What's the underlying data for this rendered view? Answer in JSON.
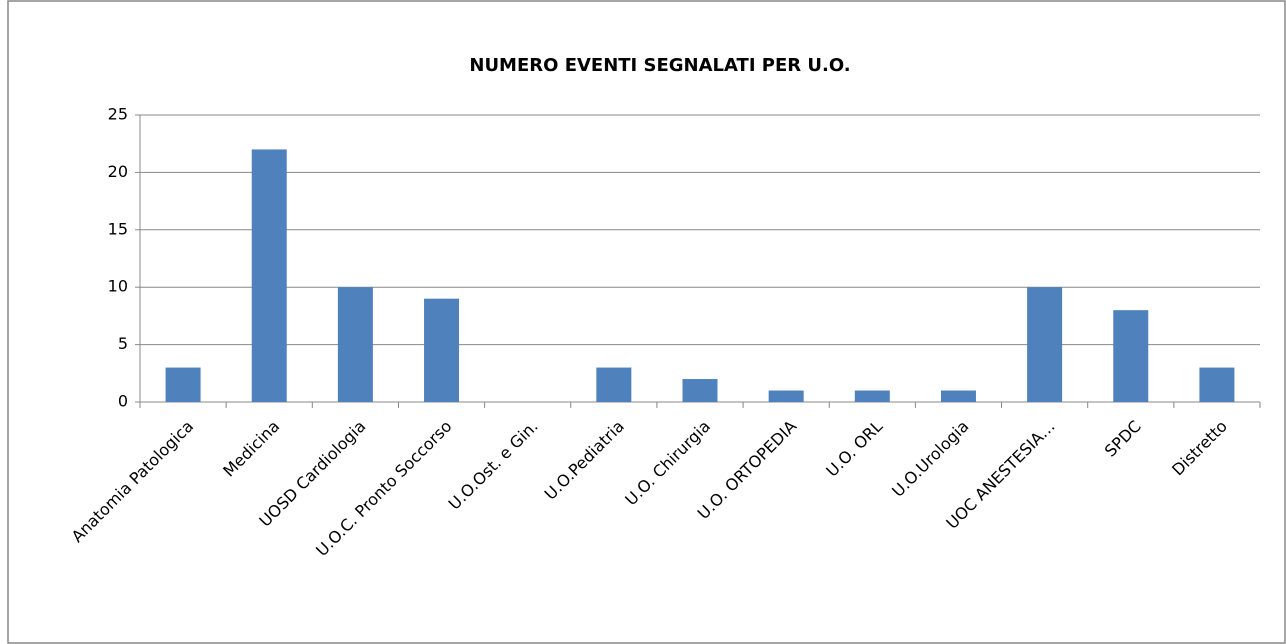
{
  "chart_data": {
    "type": "bar",
    "title": "NUMERO EVENTI SEGNALATI PER U.O.",
    "categories": [
      "Anatomia Patologica",
      "Medicina",
      "UOSD Cardiologia",
      "U.O.C. Pronto Soccorso",
      "U.O.Ost. e Gin.",
      "U.O.Pediatria",
      "U.O. Chirurgia",
      "U.O. ORTOPEDIA",
      "U.O. ORL",
      "U.O.Urologia",
      "UOC ANESTESIA…",
      "SPDC",
      "Distretto"
    ],
    "values": [
      3,
      22,
      10,
      9,
      0,
      3,
      2,
      1,
      1,
      1,
      10,
      8,
      3
    ],
    "color": "#4f81bd",
    "ylim": [
      0,
      25
    ],
    "yticks": [
      0,
      5,
      10,
      15,
      20,
      25
    ],
    "grid": true
  }
}
